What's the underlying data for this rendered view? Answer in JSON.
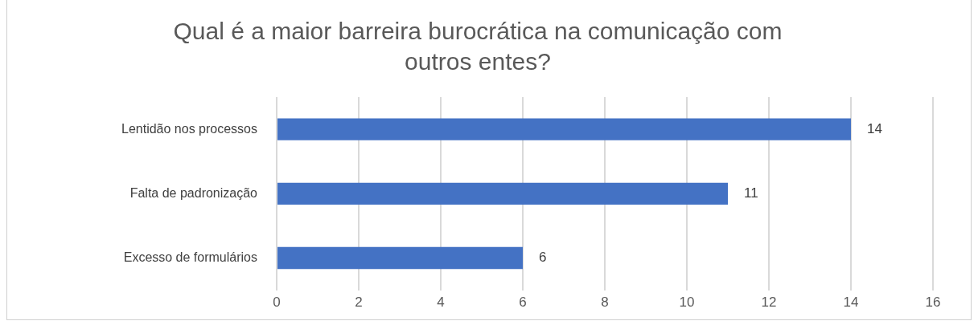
{
  "chart_data": {
    "type": "bar",
    "orientation": "horizontal",
    "title": "Qual é a maior barreira burocrática na comunicação com outros entes?",
    "categories": [
      "Lentidão nos processos",
      "Falta de padronização",
      "Excesso de formulários"
    ],
    "values": [
      14,
      11,
      6
    ],
    "color": "#4472c4",
    "xlim": [
      0,
      16
    ],
    "xticks": [
      0,
      2,
      4,
      6,
      8,
      10,
      12,
      14,
      16
    ],
    "grid": "x",
    "data_labels": true,
    "legend": false
  }
}
